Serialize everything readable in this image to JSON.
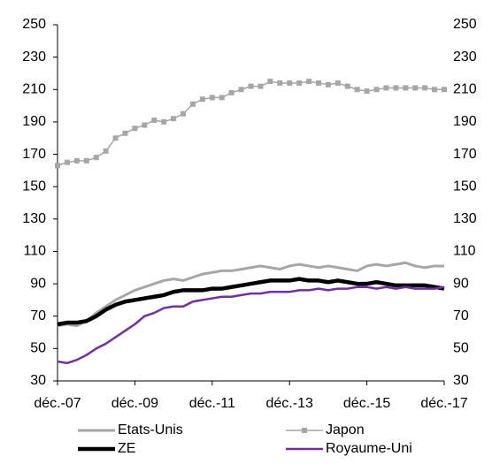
{
  "chart_data": {
    "type": "line",
    "categories": [
      "déc.-07",
      null,
      null,
      null,
      null,
      null,
      null,
      null,
      "déc.-09",
      null,
      null,
      null,
      null,
      null,
      null,
      null,
      "déc.-11",
      null,
      null,
      null,
      null,
      null,
      null,
      null,
      "déc.-13",
      null,
      null,
      null,
      null,
      null,
      null,
      null,
      "déc.-15",
      null,
      null,
      null,
      null,
      null,
      null,
      null,
      "déc.-17"
    ],
    "series": [
      {
        "name": "Etats-Unis",
        "color": "#a6a6a6",
        "values": [
          64,
          65,
          64,
          67,
          72,
          76,
          80,
          83,
          86,
          88,
          90,
          92,
          93,
          92,
          94,
          96,
          97,
          98,
          98,
          99,
          100,
          101,
          100,
          99,
          101,
          102,
          101,
          100,
          101,
          100,
          99,
          98,
          101,
          102,
          101,
          102,
          103,
          101,
          100,
          101,
          101
        ]
      },
      {
        "name": "Japon",
        "color": "#a6a6a6",
        "marker": "square",
        "values": [
          163,
          165,
          166,
          166,
          168,
          172,
          180,
          183,
          186,
          188,
          191,
          190,
          192,
          195,
          201,
          204,
          205,
          205,
          208,
          210,
          212,
          212,
          215,
          214,
          214,
          214,
          215,
          214,
          213,
          214,
          212,
          210,
          209,
          210,
          211,
          211,
          211,
          211,
          211,
          210,
          210
        ]
      },
      {
        "name": "ZE",
        "color": "#000000",
        "values": [
          65,
          66,
          66,
          67,
          70,
          74,
          77,
          79,
          80,
          81,
          82,
          83,
          85,
          86,
          86,
          86,
          87,
          87,
          88,
          89,
          90,
          91,
          92,
          92,
          92,
          93,
          92,
          92,
          91,
          92,
          91,
          90,
          90,
          91,
          90,
          89,
          89,
          89,
          89,
          88,
          87
        ]
      },
      {
        "name": "Royaume-Uni",
        "color": "#7030a0",
        "values": [
          42,
          41,
          43,
          46,
          50,
          53,
          57,
          61,
          65,
          70,
          72,
          75,
          76,
          76,
          79,
          80,
          81,
          82,
          82,
          83,
          84,
          84,
          85,
          85,
          85,
          86,
          86,
          87,
          86,
          87,
          87,
          88,
          88,
          87,
          88,
          87,
          88,
          87,
          87,
          87,
          88
        ]
      }
    ],
    "ylim": [
      30,
      250
    ],
    "yticks": [
      30,
      50,
      70,
      90,
      110,
      130,
      150,
      170,
      190,
      210,
      230,
      250
    ],
    "y2lim": [
      30,
      250
    ],
    "y2ticks": [
      30,
      50,
      70,
      90,
      110,
      130,
      150,
      170,
      190,
      210,
      230,
      250
    ],
    "legend": "bottom"
  }
}
